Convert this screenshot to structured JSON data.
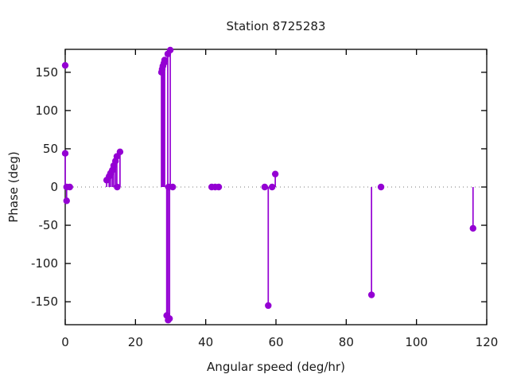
{
  "window": {
    "background": "#ffffff"
  },
  "chart_data": {
    "type": "stem",
    "style": "impulses-with-points",
    "title": "Station 8725283",
    "xlabel": "Angular speed (deg/hr)",
    "ylabel": "Phase (deg)",
    "xlim": [
      0,
      120
    ],
    "ylim": [
      -180,
      180
    ],
    "xticks": [
      0,
      20,
      40,
      60,
      80,
      100,
      120
    ],
    "yticks": [
      -150,
      -100,
      -50,
      0,
      50,
      100,
      150
    ],
    "grid": "dotted-zero-line-only",
    "legend": "none",
    "marker": "filled-circle",
    "colors": {
      "series": "#9400d3",
      "axis": "#000000",
      "text": "#1a1a1a",
      "zero_line": "#7a7a7a",
      "background": "#ffffff"
    },
    "points": [
      {
        "x": 0,
        "y": 159,
        "stem": false
      },
      {
        "x": 0,
        "y": 44
      },
      {
        "x": 0.4,
        "y": 0
      },
      {
        "x": 1.3,
        "y": 0
      },
      {
        "x": 0.4,
        "y": -18
      },
      {
        "x": 11.8,
        "y": 9
      },
      {
        "x": 12.5,
        "y": 14
      },
      {
        "x": 12.9,
        "y": 18
      },
      {
        "x": 13.4,
        "y": 22
      },
      {
        "x": 13.8,
        "y": 28
      },
      {
        "x": 14.3,
        "y": 34
      },
      {
        "x": 14.7,
        "y": 40
      },
      {
        "x": 15.6,
        "y": 46
      },
      {
        "x": 14.8,
        "y": 0
      },
      {
        "x": 27.4,
        "y": 150
      },
      {
        "x": 27.6,
        "y": 154
      },
      {
        "x": 27.8,
        "y": 158
      },
      {
        "x": 28.1,
        "y": 162
      },
      {
        "x": 28.3,
        "y": 166
      },
      {
        "x": 29.2,
        "y": 174
      },
      {
        "x": 29.9,
        "y": 179
      },
      {
        "x": 28.9,
        "y": -168
      },
      {
        "x": 29.3,
        "y": -174
      },
      {
        "x": 29.7,
        "y": -172
      },
      {
        "x": 29.4,
        "y": 0
      },
      {
        "x": 30.6,
        "y": 0
      },
      {
        "x": 41.7,
        "y": 0
      },
      {
        "x": 42.7,
        "y": 0
      },
      {
        "x": 43.7,
        "y": 0
      },
      {
        "x": 56.8,
        "y": 0
      },
      {
        "x": 57.8,
        "y": -155
      },
      {
        "x": 58.9,
        "y": 0
      },
      {
        "x": 59.8,
        "y": 17
      },
      {
        "x": 87.2,
        "y": -141
      },
      {
        "x": 89.9,
        "y": 0
      },
      {
        "x": 116.1,
        "y": -54
      }
    ]
  }
}
